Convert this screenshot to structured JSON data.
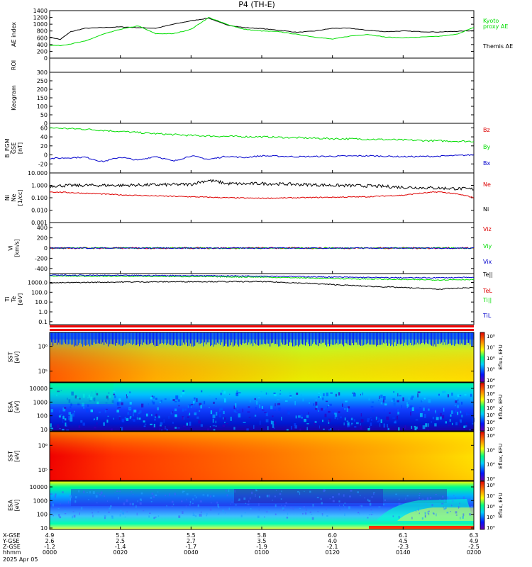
{
  "title": "P4 (TH-E)",
  "date": "2025 Apr 05",
  "orbit_labels": [
    "X-GSE",
    "Y-GSE",
    "Z-GSE",
    "hhmm"
  ],
  "orbit_ticks": [
    {
      "x": "4.9",
      "y": "2.6",
      "z": "-1.2",
      "t": "0000"
    },
    {
      "x": "5.3",
      "y": "2.5",
      "z": "-1.4",
      "t": "0020"
    },
    {
      "x": "5.5",
      "y": "2.7",
      "z": "-1.7",
      "t": "0040"
    },
    {
      "x": "5.8",
      "y": "3.5",
      "z": "-1.9",
      "t": "0100"
    },
    {
      "x": "6.0",
      "y": "4.0",
      "z": "-2.1",
      "t": "0120"
    },
    {
      "x": "6.1",
      "y": "4.5",
      "z": "-2.3",
      "t": "0140"
    },
    {
      "x": "6.3",
      "y": "4.9",
      "z": "-2.5",
      "t": "0200"
    }
  ],
  "colors": {
    "green": "#00dd00",
    "red": "#dd0000",
    "blue": "#0000cc",
    "black": "#000000"
  },
  "chart_data": [
    {
      "type": "line",
      "id": "ae",
      "ylabel": "AE index",
      "ylim": [
        0,
        1400
      ],
      "yticks": [
        0,
        200,
        400,
        600,
        800,
        1000,
        1200,
        1400
      ],
      "xlim": [
        0,
        120
      ],
      "series": [
        {
          "name": "Themis AE",
          "color": "#000000",
          "x": [
            0,
            3,
            6,
            10,
            15,
            20,
            25,
            30,
            35,
            40,
            45,
            50,
            55,
            60,
            65,
            70,
            75,
            80,
            85,
            90,
            95,
            100,
            105,
            110,
            115,
            120
          ],
          "values": [
            620,
            550,
            780,
            880,
            900,
            920,
            900,
            880,
            1000,
            1100,
            1180,
            980,
            900,
            870,
            820,
            760,
            800,
            880,
            880,
            820,
            780,
            800,
            780,
            770,
            790,
            810
          ]
        },
        {
          "name": "Kyoto proxy AE",
          "color": "#00dd00",
          "x": [
            0,
            3,
            6,
            10,
            15,
            20,
            25,
            30,
            35,
            40,
            45,
            50,
            55,
            60,
            65,
            70,
            75,
            80,
            85,
            90,
            95,
            100,
            105,
            110,
            115,
            120
          ],
          "values": [
            380,
            370,
            420,
            500,
            700,
            850,
            950,
            720,
            720,
            850,
            1200,
            1000,
            850,
            800,
            780,
            700,
            620,
            560,
            650,
            700,
            620,
            600,
            620,
            640,
            700,
            900
          ]
        }
      ],
      "legend": [
        "Kyoto",
        "proxy AE",
        "Themis AE"
      ]
    },
    {
      "type": "line",
      "id": "roi",
      "ylabel": "ROI",
      "series": []
    },
    {
      "type": "line",
      "id": "keogram",
      "ylabel": "Keogram",
      "ylim": [
        0,
        300
      ],
      "yticks": [
        0,
        50,
        100,
        150,
        200,
        250,
        300
      ],
      "series": []
    },
    {
      "type": "line",
      "id": "bfgm",
      "ylabel_lines": [
        "B_FGM",
        "GSE",
        "[nT]"
      ],
      "ylim": [
        -40,
        70
      ],
      "yticks": [
        -20,
        0,
        20,
        40,
        60
      ],
      "xlim": [
        0,
        120
      ],
      "series": [
        {
          "name": "Bz",
          "color": "#00dd00",
          "x": [
            0,
            10,
            20,
            30,
            40,
            50,
            60,
            70,
            80,
            90,
            100,
            110,
            120
          ],
          "values": [
            60,
            57,
            52,
            47,
            43,
            41,
            40,
            38,
            36,
            35,
            33,
            31,
            30
          ]
        },
        {
          "name": "By",
          "color": "#dd0000",
          "x": [],
          "values": []
        },
        {
          "name": "Bx",
          "color": "#0000cc",
          "x": [
            0,
            10,
            15,
            20,
            25,
            30,
            35,
            40,
            45,
            50,
            55,
            60,
            70,
            80,
            90,
            100,
            110,
            120
          ],
          "values": [
            -8,
            -5,
            -15,
            -5,
            -12,
            -3,
            -14,
            -2,
            -10,
            -3,
            -6,
            -2,
            -4,
            -3,
            -2,
            -4,
            -3,
            0
          ]
        }
      ],
      "legend": [
        "Bz",
        "By",
        "Bx"
      ]
    },
    {
      "type": "line",
      "id": "ni",
      "ylabel_lines": [
        "Ni",
        "Ne",
        "[1/cc]"
      ],
      "scale": "log",
      "ylim": [
        0.001,
        10
      ],
      "ytick_labels": [
        "10.000",
        "1.000",
        "0.100",
        "0.010",
        "0.001"
      ],
      "xlim": [
        0,
        120
      ],
      "series": [
        {
          "name": "Ne",
          "color": "#000000",
          "x": [
            0,
            10,
            20,
            30,
            40,
            45,
            50,
            55,
            60,
            70,
            80,
            90,
            100,
            110,
            120
          ],
          "values": [
            0.9,
            1.0,
            1.0,
            1.1,
            1.2,
            2.5,
            1.4,
            1.3,
            1.4,
            1.2,
            1.0,
            0.9,
            0.7,
            0.6,
            0.5
          ]
        },
        {
          "name": "Ni",
          "color": "#dd0000",
          "x": [
            0,
            10,
            20,
            30,
            40,
            50,
            60,
            70,
            80,
            90,
            100,
            110,
            120
          ],
          "values": [
            0.3,
            0.23,
            0.17,
            0.14,
            0.12,
            0.1,
            0.09,
            0.1,
            0.11,
            0.12,
            0.16,
            0.3,
            0.1
          ]
        }
      ],
      "legend": [
        "Ne",
        "Ni"
      ]
    },
    {
      "type": "line",
      "id": "vi",
      "ylabel_lines": [
        "Vi",
        "[km/s]"
      ],
      "ylim": [
        -500,
        500
      ],
      "yticks": [
        -400,
        -200,
        0,
        200,
        400
      ],
      "series": [
        {
          "name": "Viz",
          "color": "#dd0000",
          "values": [
            0
          ]
        },
        {
          "name": "Viy",
          "color": "#00dd00",
          "values": [
            0
          ]
        },
        {
          "name": "Vix",
          "color": "#0000cc",
          "values": [
            0
          ]
        }
      ],
      "legend": [
        "Viz",
        "Viy",
        "Vix"
      ]
    },
    {
      "type": "line",
      "id": "ti",
      "ylabel_lines": [
        "Ti",
        "Te",
        "[eV]"
      ],
      "scale": "log",
      "ylim": [
        0.05,
        8000
      ],
      "ytick_labels": [
        "1000.0",
        "100.0",
        "10.0",
        "1.0",
        "0.1"
      ],
      "xlim": [
        0,
        120
      ],
      "series": [
        {
          "name": "Te||",
          "color": "#000000",
          "x": [
            0,
            20,
            40,
            60,
            70,
            80,
            90,
            100,
            110,
            120
          ],
          "values": [
            900,
            1100,
            1200,
            1200,
            900,
            600,
            400,
            300,
            200,
            300
          ]
        },
        {
          "name": "Ti||",
          "color": "#00dd00",
          "x": [
            0,
            20,
            40,
            60,
            70,
            80,
            90,
            100,
            110,
            120
          ],
          "values": [
            4500,
            4200,
            4000,
            3500,
            3000,
            2500,
            2200,
            2000,
            1800,
            2000
          ]
        },
        {
          "name": "TiL",
          "color": "#0000cc",
          "x": [
            0,
            20,
            40,
            60,
            70,
            80,
            90,
            100,
            110,
            120
          ],
          "values": [
            5500,
            5200,
            5000,
            4500,
            4000,
            3500,
            3200,
            3000,
            3000,
            3200
          ]
        }
      ],
      "legend": [
        "Te||",
        "TeL",
        "Ti||",
        "TiL"
      ]
    },
    {
      "type": "heatmap",
      "id": "sst_e",
      "ylabel_lines": [
        "SST",
        "[eV]"
      ],
      "ytick_labels": [
        "10⁶",
        "10⁵"
      ],
      "colorbar_ticks": [
        "10⁸",
        "10⁷",
        "10⁶",
        "10⁵",
        "10⁴"
      ],
      "colorbar_label": "Eflux, EFU"
    },
    {
      "type": "heatmap",
      "id": "esa_e",
      "ylabel_lines": [
        "ESA",
        "[eV]"
      ],
      "ytick_labels": [
        "10000",
        "1000",
        "100",
        "10"
      ],
      "colorbar_ticks": [
        "10⁹",
        "10⁸",
        "10⁷",
        "10⁶",
        "10⁵",
        "10⁴",
        "10³"
      ],
      "colorbar_label": "Eflux, EFU"
    },
    {
      "type": "heatmap",
      "id": "sst_i",
      "ylabel_lines": [
        "SST",
        "[eV]"
      ],
      "ytick_labels": [
        "10⁶",
        "10⁵"
      ],
      "colorbar_ticks": [
        "10⁶",
        "10⁵",
        "10⁴",
        "10³"
      ],
      "colorbar_label": "Eflux, EFU"
    },
    {
      "type": "heatmap",
      "id": "esa_i",
      "ylabel_lines": [
        "ESA",
        "[eV]"
      ],
      "ytick_labels": [
        "10000",
        "1000",
        "100",
        "10"
      ],
      "colorbar_ticks": [
        "10⁸",
        "10⁷",
        "10⁶",
        "10⁵",
        "10⁴"
      ],
      "colorbar_label": "Eflux, EFU"
    }
  ]
}
